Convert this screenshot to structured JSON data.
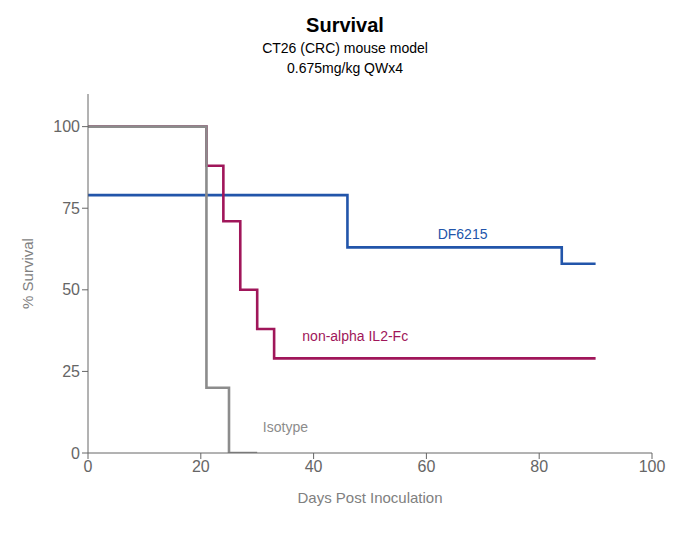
{
  "chart_data": {
    "type": "line",
    "title": "Survival",
    "subtitle": [
      "CT26 (CRC) mouse model",
      "0.675mg/kg QWx4"
    ],
    "xlabel": "Days Post Inoculation",
    "ylabel": "% Survival",
    "xlim": [
      0,
      100
    ],
    "ylim": [
      0,
      110
    ],
    "xticks": [
      0,
      20,
      40,
      60,
      80,
      100
    ],
    "yticks": [
      0,
      25,
      50,
      75,
      100
    ],
    "grid": false,
    "series": [
      {
        "name": "DF6215",
        "color": "#2255aa",
        "x": [
          0,
          28,
          28,
          46,
          46,
          84,
          84,
          90
        ],
        "values": [
          79,
          79,
          79,
          79,
          63,
          63,
          58,
          58
        ]
      },
      {
        "name": "non-alpha IL2-Fc",
        "color": "#a0165a",
        "x": [
          0,
          21,
          21,
          24,
          24,
          27,
          27,
          30,
          30,
          33,
          33,
          90
        ],
        "values": [
          100,
          100,
          88,
          88,
          71,
          71,
          50,
          50,
          38,
          38,
          29,
          29
        ]
      },
      {
        "name": "Isotype",
        "color": "#8c8c8c",
        "x": [
          0,
          21,
          21,
          25,
          25,
          30
        ],
        "values": [
          100,
          100,
          20,
          20,
          0,
          0
        ]
      }
    ],
    "annotations": [
      {
        "text": "DF6215",
        "x": 62,
        "y": 67,
        "color": "#2255aa"
      },
      {
        "text": "non-alpha IL2-Fc",
        "x": 38,
        "y": 36,
        "color": "#a0165a"
      },
      {
        "text": "Isotype",
        "x": 31,
        "y": 8,
        "color": "#8c8c8c"
      }
    ]
  }
}
